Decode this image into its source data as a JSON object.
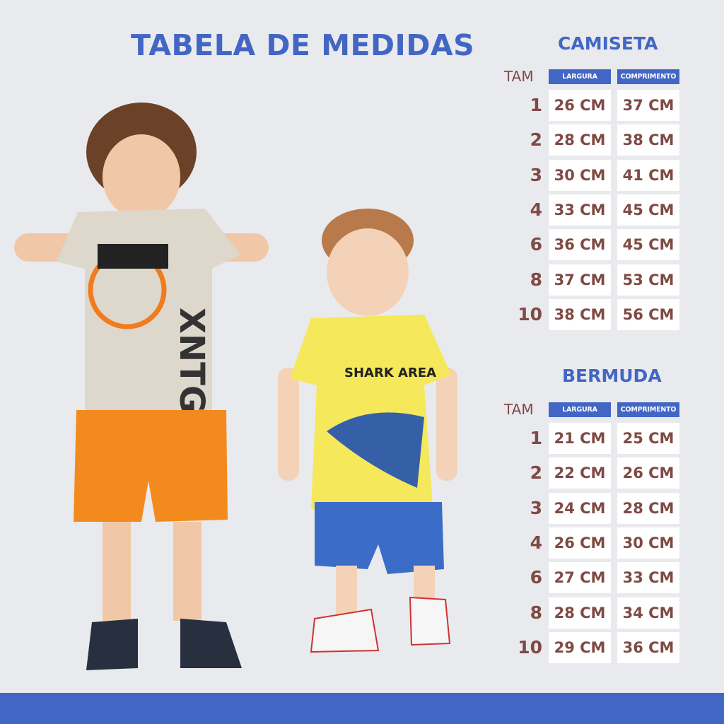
{
  "title": "TABELA DE MEDIDAS",
  "colors": {
    "accent": "#4266c4",
    "text": "#7f4a44",
    "background": "#e9eaee"
  },
  "camiseta": {
    "heading": "CAMISETA",
    "size_label": "TAM",
    "col1": "LARGURA",
    "col2": "COMPRIMENTO",
    "rows": [
      {
        "size": "1",
        "largura": "26 CM",
        "comprimento": "37 CM"
      },
      {
        "size": "2",
        "largura": "28 CM",
        "comprimento": "38 CM"
      },
      {
        "size": "3",
        "largura": "30 CM",
        "comprimento": "41 CM"
      },
      {
        "size": "4",
        "largura": "33 CM",
        "comprimento": "45 CM"
      },
      {
        "size": "6",
        "largura": "36 CM",
        "comprimento": "45 CM"
      },
      {
        "size": "8",
        "largura": "37 CM",
        "comprimento": "53 CM"
      },
      {
        "size": "10",
        "largura": "38 CM",
        "comprimento": "56 CM"
      }
    ]
  },
  "bermuda": {
    "heading": "BERMUDA",
    "size_label": "TAM",
    "col1": "LARGURA",
    "col2": "COMPRIMENTO",
    "rows": [
      {
        "size": "1",
        "largura": "21 CM",
        "comprimento": "25 CM"
      },
      {
        "size": "2",
        "largura": "22 CM",
        "comprimento": "26 CM"
      },
      {
        "size": "3",
        "largura": "24 CM",
        "comprimento": "28 CM"
      },
      {
        "size": "4",
        "largura": "26 CM",
        "comprimento": "30 CM"
      },
      {
        "size": "6",
        "largura": "27 CM",
        "comprimento": "33 CM"
      },
      {
        "size": "8",
        "largura": "28 CM",
        "comprimento": "34 CM"
      },
      {
        "size": "10",
        "largura": "29 CM",
        "comprimento": "36 CM"
      }
    ]
  },
  "photo": {
    "shirt_print": "SHARK AREA"
  }
}
